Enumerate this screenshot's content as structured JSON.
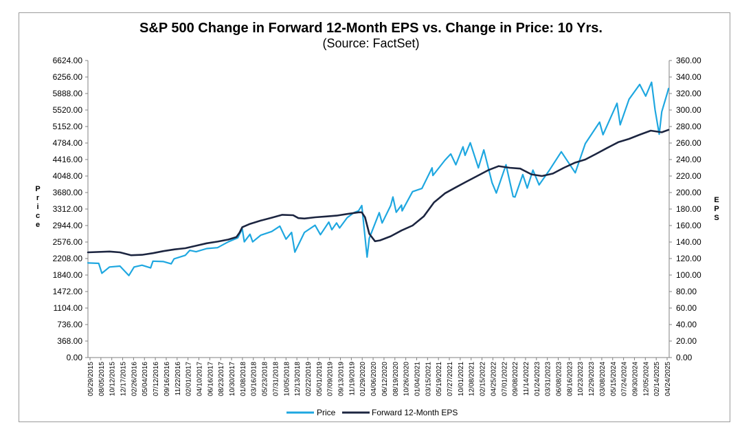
{
  "chart_data": {
    "type": "line",
    "title": "S&P 500 Change in Forward 12-Month EPS vs. Change in Price: 10 Yrs.",
    "subtitle": "(Source: FactSet)",
    "ylabel_left": "Price",
    "ylabel_right": "EPS",
    "ylim_left": [
      0,
      6624
    ],
    "ylim_right": [
      0,
      360
    ],
    "yticks_left": [
      "0.00",
      "368.00",
      "736.00",
      "1104.00",
      "1472.00",
      "1840.00",
      "2208.00",
      "2576.00",
      "2944.00",
      "3312.00",
      "3680.00",
      "4048.00",
      "4416.00",
      "4784.00",
      "5152.00",
      "5520.00",
      "5888.00",
      "6256.00",
      "6624.00"
    ],
    "yticks_right": [
      "0.00",
      "20.00",
      "40.00",
      "60.00",
      "80.00",
      "100.00",
      "120.00",
      "140.00",
      "160.00",
      "180.00",
      "200.00",
      "220.00",
      "240.00",
      "260.00",
      "280.00",
      "300.00",
      "320.00",
      "340.00",
      "360.00"
    ],
    "xticks": [
      "05/29/2015",
      "08/05/2015",
      "10/12/2015",
      "12/17/2015",
      "02/26/2016",
      "05/04/2016",
      "07/12/2016",
      "09/16/2016",
      "11/22/2016",
      "02/01/2017",
      "04/10/2017",
      "06/16/2017",
      "08/23/2017",
      "10/30/2017",
      "01/08/2018",
      "03/16/2018",
      "05/23/2018",
      "07/31/2018",
      "10/05/2018",
      "12/13/2018",
      "02/22/2019",
      "05/01/2019",
      "07/09/2019",
      "09/13/2019",
      "11/19/2019",
      "01/29/2020",
      "04/06/2020",
      "06/12/2020",
      "08/19/2020",
      "10/26/2020",
      "01/04/2021",
      "03/15/2021",
      "05/19/2021",
      "07/27/2021",
      "10/01/2021",
      "12/08/2021",
      "02/15/2022",
      "04/25/2022",
      "07/01/2022",
      "09/08/2022",
      "11/14/2022",
      "01/24/2023",
      "03/31/2023",
      "06/08/2023",
      "08/16/2023",
      "10/23/2023",
      "12/29/2023",
      "03/08/2024",
      "05/15/2024",
      "07/24/2024",
      "09/30/2024",
      "12/05/2024",
      "02/14/2025",
      "04/24/2025"
    ],
    "x_range": [
      "05/29/2015",
      "06/2025"
    ],
    "grid": false,
    "legend": "bottom",
    "series": [
      {
        "name": "Price",
        "color": "#1ea7e0",
        "axis": "left",
        "points": [
          [
            "2015-05-29",
            2110
          ],
          [
            "2015-08-05",
            2100
          ],
          [
            "2015-08-25",
            1880
          ],
          [
            "2015-10-12",
            2020
          ],
          [
            "2015-12-17",
            2040
          ],
          [
            "2016-02-11",
            1830
          ],
          [
            "2016-03-15",
            2020
          ],
          [
            "2016-05-04",
            2060
          ],
          [
            "2016-06-27",
            2000
          ],
          [
            "2016-07-12",
            2150
          ],
          [
            "2016-09-16",
            2140
          ],
          [
            "2016-11-04",
            2090
          ],
          [
            "2016-11-22",
            2200
          ],
          [
            "2017-02-01",
            2280
          ],
          [
            "2017-03-01",
            2390
          ],
          [
            "2017-04-10",
            2360
          ],
          [
            "2017-06-16",
            2430
          ],
          [
            "2017-08-23",
            2450
          ],
          [
            "2017-10-30",
            2580
          ],
          [
            "2017-12-29",
            2670
          ],
          [
            "2018-01-26",
            2870
          ],
          [
            "2018-02-08",
            2580
          ],
          [
            "2018-03-16",
            2750
          ],
          [
            "2018-04-02",
            2580
          ],
          [
            "2018-05-23",
            2730
          ],
          [
            "2018-07-31",
            2810
          ],
          [
            "2018-09-20",
            2930
          ],
          [
            "2018-10-29",
            2640
          ],
          [
            "2018-12-03",
            2790
          ],
          [
            "2018-12-24",
            2350
          ],
          [
            "2019-02-22",
            2790
          ],
          [
            "2019-04-30",
            2950
          ],
          [
            "2019-06-03",
            2740
          ],
          [
            "2019-07-26",
            3020
          ],
          [
            "2019-08-14",
            2850
          ],
          [
            "2019-09-13",
            3000
          ],
          [
            "2019-10-02",
            2890
          ],
          [
            "2019-11-19",
            3120
          ],
          [
            "2019-12-31",
            3230
          ],
          [
            "2020-01-29",
            3270
          ],
          [
            "2020-02-19",
            3390
          ],
          [
            "2020-03-23",
            2240
          ],
          [
            "2020-04-06",
            2660
          ],
          [
            "2020-06-08",
            3230
          ],
          [
            "2020-06-26",
            3000
          ],
          [
            "2020-08-19",
            3390
          ],
          [
            "2020-09-02",
            3580
          ],
          [
            "2020-09-23",
            3240
          ],
          [
            "2020-10-26",
            3400
          ],
          [
            "2020-10-30",
            3270
          ],
          [
            "2021-01-04",
            3700
          ],
          [
            "2021-03-04",
            3770
          ],
          [
            "2021-05-07",
            4230
          ],
          [
            "2021-05-12",
            4060
          ],
          [
            "2021-07-27",
            4400
          ],
          [
            "2021-09-02",
            4540
          ],
          [
            "2021-10-04",
            4300
          ],
          [
            "2021-11-18",
            4700
          ],
          [
            "2021-12-01",
            4510
          ],
          [
            "2022-01-03",
            4790
          ],
          [
            "2022-02-23",
            4230
          ],
          [
            "2022-03-29",
            4630
          ],
          [
            "2022-05-20",
            3900
          ],
          [
            "2022-06-16",
            3670
          ],
          [
            "2022-08-16",
            4300
          ],
          [
            "2022-09-30",
            3590
          ],
          [
            "2022-10-12",
            3580
          ],
          [
            "2022-11-30",
            4080
          ],
          [
            "2022-12-28",
            3780
          ],
          [
            "2023-02-02",
            4180
          ],
          [
            "2023-03-13",
            3850
          ],
          [
            "2023-05-19",
            4190
          ],
          [
            "2023-07-31",
            4590
          ],
          [
            "2023-10-27",
            4120
          ],
          [
            "2023-12-29",
            4770
          ],
          [
            "2024-03-28",
            5250
          ],
          [
            "2024-04-19",
            4970
          ],
          [
            "2024-07-16",
            5670
          ],
          [
            "2024-08-05",
            5190
          ],
          [
            "2024-09-30",
            5760
          ],
          [
            "2024-12-06",
            6090
          ],
          [
            "2025-01-13",
            5830
          ],
          [
            "2025-02-19",
            6140
          ],
          [
            "2025-03-13",
            5520
          ],
          [
            "2025-04-08",
            4980
          ],
          [
            "2025-04-24",
            5480
          ],
          [
            "2025-05-30",
            5910
          ],
          [
            "2025-06-06",
            6000
          ]
        ]
      },
      {
        "name": "Forward 12-Month EPS",
        "color": "#1c2540",
        "axis": "right",
        "points": [
          [
            "2015-05-29",
            127.5
          ],
          [
            "2015-10-12",
            128.5
          ],
          [
            "2015-12-17",
            127.5
          ],
          [
            "2016-02-26",
            124
          ],
          [
            "2016-05-04",
            124.5
          ],
          [
            "2016-07-12",
            126.5
          ],
          [
            "2016-09-16",
            129
          ],
          [
            "2016-11-22",
            131
          ],
          [
            "2017-02-01",
            132.5
          ],
          [
            "2017-04-10",
            135.5
          ],
          [
            "2017-06-16",
            138.5
          ],
          [
            "2017-08-23",
            140.5
          ],
          [
            "2017-10-30",
            143
          ],
          [
            "2017-12-20",
            146
          ],
          [
            "2018-01-08",
            151
          ],
          [
            "2018-01-26",
            158
          ],
          [
            "2018-03-16",
            162
          ],
          [
            "2018-05-23",
            166
          ],
          [
            "2018-07-31",
            169.5
          ],
          [
            "2018-10-05",
            173
          ],
          [
            "2018-12-13",
            172.5
          ],
          [
            "2019-01-15",
            169
          ],
          [
            "2019-02-22",
            168.5
          ],
          [
            "2019-05-01",
            170
          ],
          [
            "2019-07-09",
            171
          ],
          [
            "2019-09-13",
            172
          ],
          [
            "2019-11-19",
            174
          ],
          [
            "2020-01-29",
            176
          ],
          [
            "2020-02-19",
            176
          ],
          [
            "2020-03-10",
            170
          ],
          [
            "2020-04-06",
            150
          ],
          [
            "2020-05-12",
            141
          ],
          [
            "2020-06-12",
            142
          ],
          [
            "2020-08-19",
            147
          ],
          [
            "2020-10-26",
            154
          ],
          [
            "2021-01-04",
            160
          ],
          [
            "2021-03-15",
            171
          ],
          [
            "2021-05-19",
            188
          ],
          [
            "2021-07-27",
            199
          ],
          [
            "2021-10-01",
            206
          ],
          [
            "2021-12-08",
            213
          ],
          [
            "2022-02-15",
            220
          ],
          [
            "2022-04-25",
            227
          ],
          [
            "2022-07-01",
            232
          ],
          [
            "2022-09-08",
            230
          ],
          [
            "2022-11-14",
            229
          ],
          [
            "2023-01-24",
            222
          ],
          [
            "2023-03-31",
            220
          ],
          [
            "2023-06-08",
            223
          ],
          [
            "2023-08-16",
            230
          ],
          [
            "2023-10-23",
            236
          ],
          [
            "2023-12-29",
            240
          ],
          [
            "2024-03-08",
            247
          ],
          [
            "2024-05-15",
            254
          ],
          [
            "2024-07-24",
            261
          ],
          [
            "2024-09-30",
            265
          ],
          [
            "2024-12-05",
            270
          ],
          [
            "2025-02-14",
            275
          ],
          [
            "2025-04-24",
            273
          ],
          [
            "2025-06-06",
            276
          ]
        ]
      }
    ]
  },
  "legend": {
    "price_label": "Price",
    "eps_label": "Forward 12-Month EPS"
  },
  "colors": {
    "price": "#1ea7e0",
    "eps": "#1c2540",
    "axis": "#808080"
  }
}
